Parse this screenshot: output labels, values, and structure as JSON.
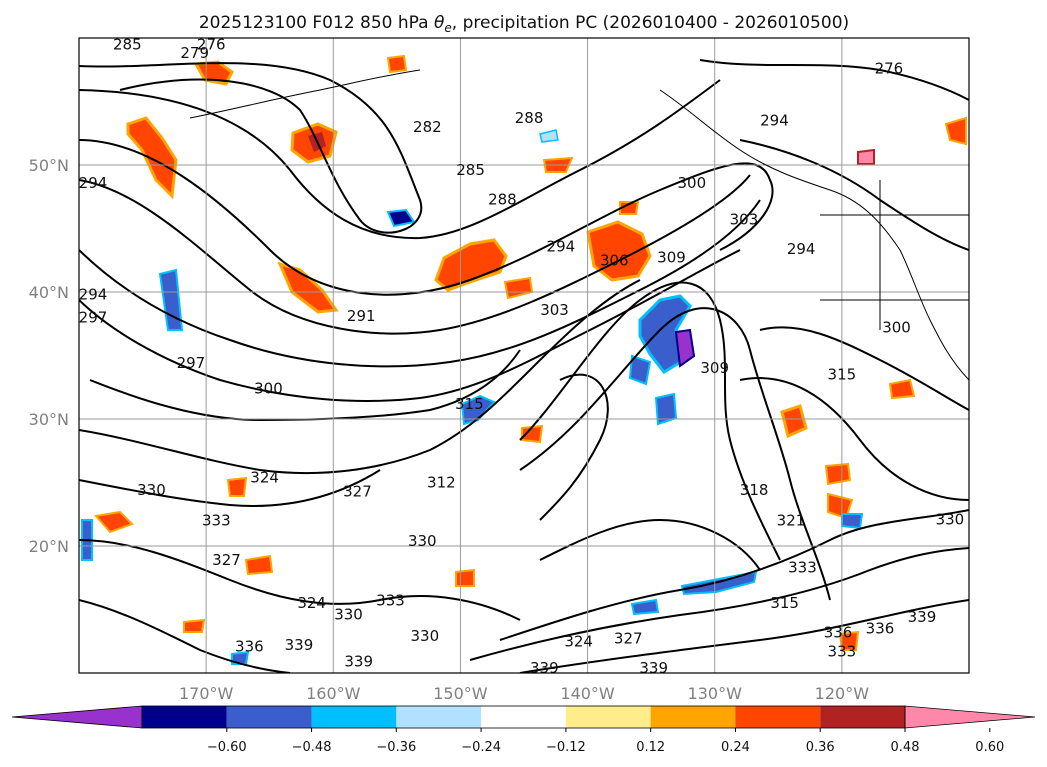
{
  "chart_data": {
    "type": "contour-map",
    "title": "2025123100 F012 850 hPa θe, precipitation PC (2026010400 - 2026010500)",
    "title_parts": {
      "prefix": "2025123100 F012 850 hPa ",
      "symbol": "θ",
      "symbol_sub": "e",
      "suffix": ", precipitation PC (2026010400 - 2026010500)"
    },
    "map_extent": {
      "lon": [
        -180,
        -110
      ],
      "lat": [
        10,
        60
      ]
    },
    "grid": true,
    "lon_ticks": [
      {
        "value": -170,
        "label": "170°W"
      },
      {
        "value": -160,
        "label": "160°W"
      },
      {
        "value": -150,
        "label": "150°W"
      },
      {
        "value": -140,
        "label": "140°W"
      },
      {
        "value": -130,
        "label": "130°W"
      },
      {
        "value": -120,
        "label": "120°W"
      }
    ],
    "lat_ticks": [
      {
        "value": 20,
        "label": "20°N"
      },
      {
        "value": 30,
        "label": "30°N"
      },
      {
        "value": 40,
        "label": "40°N"
      },
      {
        "value": 50,
        "label": "50°N"
      }
    ],
    "contour_field": "850 hPa theta-e (K)",
    "contour_interval": 3,
    "contour_labels": [
      {
        "value": "285",
        "lon": -176.2,
        "lat": 59.5
      },
      {
        "value": "279",
        "lon": -170.9,
        "lat": 58.8
      },
      {
        "value": "276",
        "lon": -169.6,
        "lat": 59.5
      },
      {
        "value": "282",
        "lon": -152.6,
        "lat": 53.0
      },
      {
        "value": "288",
        "lon": -144.6,
        "lat": 53.7
      },
      {
        "value": "285",
        "lon": -149.2,
        "lat": 49.6
      },
      {
        "value": "288",
        "lon": -146.7,
        "lat": 47.3
      },
      {
        "value": "294",
        "lon": -178.9,
        "lat": 48.6
      },
      {
        "value": "294",
        "lon": -178.9,
        "lat": 39.8
      },
      {
        "value": "297",
        "lon": -178.9,
        "lat": 38.0
      },
      {
        "value": "291",
        "lon": -157.8,
        "lat": 38.1
      },
      {
        "value": "297",
        "lon": -171.2,
        "lat": 34.4
      },
      {
        "value": "300",
        "lon": -165.1,
        "lat": 32.4
      },
      {
        "value": "303",
        "lon": -142.6,
        "lat": 38.6
      },
      {
        "value": "294",
        "lon": -142.1,
        "lat": 43.6
      },
      {
        "value": "306",
        "lon": -137.9,
        "lat": 42.5
      },
      {
        "value": "309",
        "lon": -133.4,
        "lat": 42.7
      },
      {
        "value": "300",
        "lon": -131.8,
        "lat": 48.6
      },
      {
        "value": "303",
        "lon": -127.7,
        "lat": 45.7
      },
      {
        "value": "294",
        "lon": -125.3,
        "lat": 53.5
      },
      {
        "value": "294",
        "lon": -123.2,
        "lat": 43.4
      },
      {
        "value": "300",
        "lon": -115.7,
        "lat": 37.2
      },
      {
        "value": "309",
        "lon": -130.0,
        "lat": 34.0
      },
      {
        "value": "315",
        "lon": -120.0,
        "lat": 33.5
      },
      {
        "value": "315",
        "lon": -149.3,
        "lat": 31.2
      },
      {
        "value": "318",
        "lon": -126.9,
        "lat": 24.4
      },
      {
        "value": "324",
        "lon": -165.4,
        "lat": 25.4
      },
      {
        "value": "327",
        "lon": -158.1,
        "lat": 24.3
      },
      {
        "value": "330",
        "lon": -174.3,
        "lat": 24.4
      },
      {
        "value": "333",
        "lon": -169.2,
        "lat": 22.0
      },
      {
        "value": "330",
        "lon": -153.0,
        "lat": 20.4
      },
      {
        "value": "327",
        "lon": -168.4,
        "lat": 18.9
      },
      {
        "value": "324",
        "lon": -161.7,
        "lat": 15.5
      },
      {
        "value": "333",
        "lon": -155.5,
        "lat": 15.7
      },
      {
        "value": "330",
        "lon": -158.8,
        "lat": 14.6
      },
      {
        "value": "336",
        "lon": -166.6,
        "lat": 12.1
      },
      {
        "value": "339",
        "lon": -162.7,
        "lat": 12.2
      },
      {
        "value": "339",
        "lon": -158.0,
        "lat": 10.9
      },
      {
        "value": "339",
        "lon": -143.4,
        "lat": 10.4
      },
      {
        "value": "339",
        "lon": -134.8,
        "lat": 10.4
      },
      {
        "value": "324",
        "lon": -140.7,
        "lat": 12.5
      },
      {
        "value": "327",
        "lon": -136.8,
        "lat": 12.7
      },
      {
        "value": "330",
        "lon": -152.8,
        "lat": 12.9
      },
      {
        "value": "333",
        "lon": -123.1,
        "lat": 18.3
      },
      {
        "value": "336",
        "lon": -120.3,
        "lat": 13.2
      },
      {
        "value": "333",
        "lon": -120.0,
        "lat": 11.7
      },
      {
        "value": "336",
        "lon": -117.0,
        "lat": 13.5
      },
      {
        "value": "339",
        "lon": -113.7,
        "lat": 14.4
      },
      {
        "value": "330",
        "lon": -111.5,
        "lat": 22.1
      },
      {
        "value": "315",
        "lon": -124.5,
        "lat": 15.5
      },
      {
        "value": "312",
        "lon": -151.5,
        "lat": 25.0
      },
      {
        "value": "321",
        "lon": -124.0,
        "lat": 22.0
      },
      {
        "value": "276",
        "lon": -116.3,
        "lat": 57.6
      }
    ],
    "shaded_field": "precipitation PC",
    "colorbar": {
      "orientation": "horizontal",
      "extend": "both",
      "tick_labels": [
        "−0.60",
        "−0.48",
        "−0.36",
        "−0.24",
        "−0.12",
        "0.12",
        "0.24",
        "0.36",
        "0.48",
        "0.60"
      ],
      "colors": [
        "#9932CC",
        "#00008B",
        "#3A5FCD",
        "#00BFFF",
        "#B0E2FF",
        "#FFFFFF",
        "#FFEC8B",
        "#FFA500",
        "#FF4500",
        "#B22222",
        "#FF88AA"
      ]
    }
  }
}
